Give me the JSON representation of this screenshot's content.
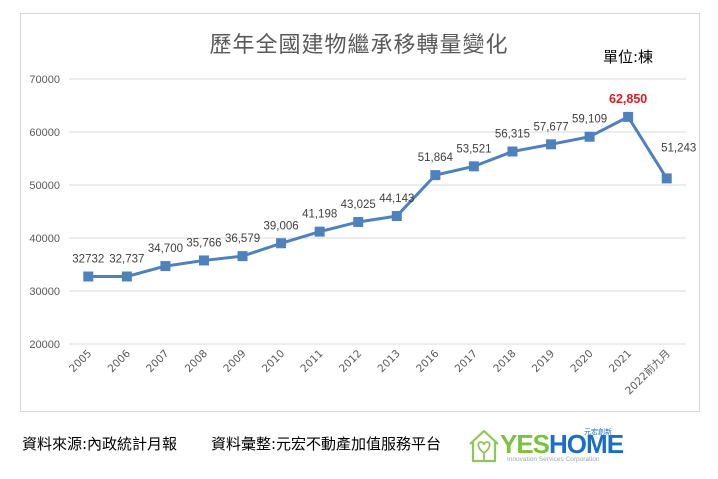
{
  "chart": {
    "title": "歷年全國建物繼承移轉量變化",
    "unit_label": "單位:棟"
  },
  "footer": {
    "source": "資料來源:內政統計月報",
    "compiled_by": "資料彙整:元宏不動產加值服務平台"
  },
  "logo": {
    "brand_part1": "YES",
    "brand_part2": "HOME",
    "tagline": "Innovation Services Corporation",
    "chinese_name": "元宏創新",
    "icon": "house-heart-icon"
  },
  "colors": {
    "line": "#4f81bd",
    "highlight_label": "#e31b1b",
    "gridline": "#d9d9d9",
    "axis_text": "#595959",
    "logo_green": "#7dc142",
    "logo_blue": "#1a6fc4"
  },
  "chart_data": {
    "type": "line",
    "title": "歷年全國建物繼承移轉量變化",
    "xlabel": "",
    "ylabel": "",
    "unit": "單位:棟",
    "categories": [
      "2005",
      "2006",
      "2007",
      "2008",
      "2009",
      "2010",
      "2011",
      "2012",
      "2013",
      "2016",
      "2017",
      "2018",
      "2019",
      "2020",
      "2021",
      "2022前九月"
    ],
    "series": [
      {
        "name": "建物繼承移轉量",
        "values": [
          32732,
          32737,
          34700,
          35766,
          36579,
          39006,
          41198,
          43025,
          44143,
          51864,
          53521,
          56315,
          57677,
          59109,
          62850,
          51243
        ],
        "data_labels": [
          "32732",
          "32,737",
          "34,700",
          "35,766",
          "36,579",
          "39,006",
          "41,198",
          "43,025",
          "44,143",
          "51,864",
          "53,521",
          "56,315",
          "57,677",
          "59,109",
          "62,850",
          "51,243"
        ],
        "marker": "square",
        "highlight_index": 14
      }
    ],
    "yticks": [
      20000,
      30000,
      40000,
      50000,
      60000,
      70000
    ],
    "ylim": [
      20000,
      70000
    ],
    "grid": true,
    "legend": "none"
  }
}
